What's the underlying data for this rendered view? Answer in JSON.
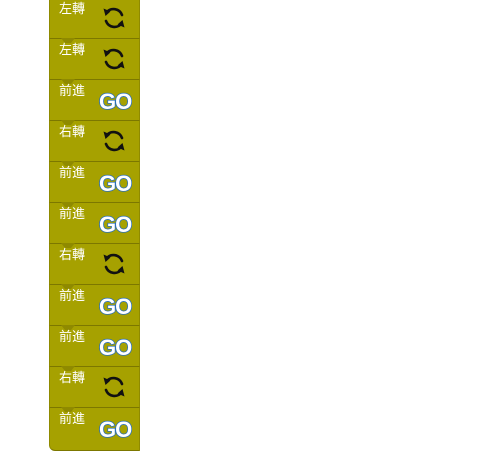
{
  "workspace": {
    "blocks": [
      {
        "label": "左轉",
        "kind": "turn-left",
        "icon": "rotate-icon"
      },
      {
        "label": "左轉",
        "kind": "turn-left",
        "icon": "rotate-icon"
      },
      {
        "label": "前進",
        "kind": "forward",
        "icon": "go-icon",
        "icon_text": "GO"
      },
      {
        "label": "右轉",
        "kind": "turn-right",
        "icon": "rotate-icon"
      },
      {
        "label": "前進",
        "kind": "forward",
        "icon": "go-icon",
        "icon_text": "GO"
      },
      {
        "label": "前進",
        "kind": "forward",
        "icon": "go-icon",
        "icon_text": "GO"
      },
      {
        "label": "右轉",
        "kind": "turn-right",
        "icon": "rotate-icon"
      },
      {
        "label": "前進",
        "kind": "forward",
        "icon": "go-icon",
        "icon_text": "GO"
      },
      {
        "label": "前進",
        "kind": "forward",
        "icon": "go-icon",
        "icon_text": "GO"
      },
      {
        "label": "右轉",
        "kind": "turn-right",
        "icon": "rotate-icon"
      },
      {
        "label": "前進",
        "kind": "forward",
        "icon": "go-icon",
        "icon_text": "GO"
      }
    ]
  },
  "colors": {
    "block_fill": "#a6a100",
    "block_border": "#7c7700",
    "label_text": "#ffffff",
    "go_fill": "#ffffff",
    "go_outline": "#2a6fb8",
    "rotate_stroke": "#111111"
  }
}
